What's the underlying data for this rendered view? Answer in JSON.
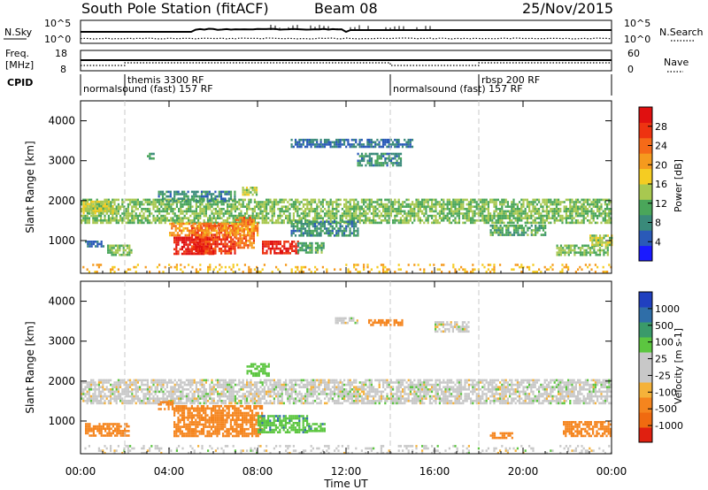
{
  "header": {
    "station": "South Pole Station (fitACF)",
    "beam": "Beam 08",
    "date": "25/Nov/2015"
  },
  "top_panels": {
    "nsky_label": "N.Sky",
    "nsky_ticks": [
      "10^5",
      "10^0"
    ],
    "nsearch_ticks": [
      "10^5",
      "10^0"
    ],
    "nsearch_label": "N.Search",
    "freq_label_1": "Freq.",
    "freq_label_2": "[MHz]",
    "freq_ticks": [
      "18",
      "8"
    ],
    "nave_ticks": [
      "60",
      "0"
    ],
    "nave_label": "Nave",
    "cpid_label": "CPID",
    "cpid_segments": [
      {
        "label": "normalsound (fast) 157 RF",
        "start_hour": 0
      },
      {
        "label": "themis 3300 RF",
        "start_hour": 2.0
      },
      {
        "label": "normalsound (fast) 157 RF",
        "start_hour": 14.0
      },
      {
        "label": "rbsp 200 RF",
        "start_hour": 18.0
      }
    ]
  },
  "colorbars": {
    "power": {
      "label": "Power [dB]",
      "ticks": [
        "4",
        "8",
        "12",
        "16",
        "20",
        "24",
        "28"
      ],
      "colors": [
        "#1a1aff",
        "#2a5ab8",
        "#3a8a7a",
        "#4aa65a",
        "#a8c850",
        "#f5cc22",
        "#f59a1e",
        "#f56a18",
        "#ee3311",
        "#e01010"
      ]
    },
    "velocity": {
      "label": "Velocity [m s-1]",
      "ticks": [
        "1000",
        "500",
        "100",
        "25",
        "-25",
        "-100",
        "-500",
        "-1000"
      ],
      "colors": [
        "#2040c0",
        "#2f6ea8",
        "#3a9a6a",
        "#5cc640",
        "#c8c8c8",
        "#c8c8c8",
        "#f5b23a",
        "#f5851e",
        "#f06a10",
        "#e02010"
      ]
    }
  },
  "chart_data": [
    {
      "type": "heatmap",
      "name": "Power",
      "ylabel": "Slant Range [km]",
      "xlabel": "Time UT",
      "ylim": [
        180,
        4500
      ],
      "yticks": [
        1000,
        2000,
        3000,
        4000
      ],
      "xlim": [
        0,
        24
      ],
      "xticks": [
        "00:00",
        "04:00",
        "08:00",
        "12:00",
        "16:00",
        "20:00",
        "00:00"
      ],
      "value_unit": "dB",
      "blobs": [
        {
          "t0": 0.0,
          "t1": 24.0,
          "r0": 1450,
          "r1": 2050,
          "level": 12
        },
        {
          "t0": 0.1,
          "t1": 1.5,
          "r0": 1700,
          "r1": 2000,
          "level": 14
        },
        {
          "t0": 1.2,
          "t1": 2.3,
          "r0": 640,
          "r1": 900,
          "level": 12
        },
        {
          "t0": 0.2,
          "t1": 1.0,
          "r0": 850,
          "r1": 1000,
          "level": 6
        },
        {
          "t0": 3.5,
          "t1": 7.0,
          "r0": 2000,
          "r1": 2250,
          "level": 8
        },
        {
          "t0": 7.3,
          "t1": 8.0,
          "r0": 2150,
          "r1": 2350,
          "level": 14
        },
        {
          "t0": 4.2,
          "t1": 6.0,
          "r0": 650,
          "r1": 1100,
          "level": 28
        },
        {
          "t0": 5.0,
          "t1": 7.0,
          "r0": 700,
          "r1": 1400,
          "level": 26
        },
        {
          "t0": 7.0,
          "t1": 7.8,
          "r0": 800,
          "r1": 1600,
          "level": 22
        },
        {
          "t0": 8.2,
          "t1": 9.8,
          "r0": 700,
          "r1": 1000,
          "level": 27
        },
        {
          "t0": 9.8,
          "t1": 11.0,
          "r0": 720,
          "r1": 960,
          "level": 10
        },
        {
          "t0": 4.0,
          "t1": 8.0,
          "r0": 1150,
          "r1": 1450,
          "level": 20
        },
        {
          "t0": 9.5,
          "t1": 12.5,
          "r0": 1100,
          "r1": 1500,
          "level": 8
        },
        {
          "t0": 9.5,
          "t1": 15.0,
          "r0": 3350,
          "r1": 3550,
          "level": 6
        },
        {
          "t0": 12.5,
          "t1": 14.5,
          "r0": 2900,
          "r1": 3200,
          "level": 8
        },
        {
          "t0": 3.0,
          "t1": 3.3,
          "r0": 3050,
          "r1": 3200,
          "level": 8
        },
        {
          "t0": 18.5,
          "t1": 21.0,
          "r0": 1150,
          "r1": 1400,
          "level": 10
        },
        {
          "t0": 21.5,
          "t1": 23.8,
          "r0": 650,
          "r1": 900,
          "level": 12
        },
        {
          "t0": 23.0,
          "t1": 24.0,
          "r0": 900,
          "r1": 1150,
          "level": 14
        },
        {
          "t0": 0.0,
          "t1": 24.0,
          "r0": 200,
          "r1": 420,
          "level": 18
        }
      ]
    },
    {
      "type": "heatmap",
      "name": "Velocity",
      "ylabel": "Slant Range [km]",
      "xlabel": "Time UT",
      "ylim": [
        180,
        4500
      ],
      "yticks": [
        1000,
        2000,
        3000,
        4000
      ],
      "xlim": [
        0,
        24
      ],
      "xticks": [
        "00:00",
        "04:00",
        "08:00",
        "12:00",
        "16:00",
        "20:00",
        "00:00"
      ],
      "value_unit": "m s-1",
      "blobs": [
        {
          "t0": 0.0,
          "t1": 24.0,
          "r0": 1450,
          "r1": 2050,
          "level": 0
        },
        {
          "t0": 0.2,
          "t1": 2.2,
          "r0": 650,
          "r1": 950,
          "level": -200
        },
        {
          "t0": 3.5,
          "t1": 4.2,
          "r0": 1300,
          "r1": 1500,
          "level": -300
        },
        {
          "t0": 4.2,
          "t1": 8.2,
          "r0": 650,
          "r1": 1400,
          "level": -300
        },
        {
          "t0": 8.0,
          "t1": 10.2,
          "r0": 700,
          "r1": 1150,
          "level": 80
        },
        {
          "t0": 10.2,
          "t1": 11.0,
          "r0": 720,
          "r1": 950,
          "level": 80
        },
        {
          "t0": 7.5,
          "t1": 8.5,
          "r0": 2150,
          "r1": 2450,
          "level": 60
        },
        {
          "t0": 11.5,
          "t1": 12.5,
          "r0": 3450,
          "r1": 3600,
          "level": 0
        },
        {
          "t0": 13.0,
          "t1": 14.5,
          "r0": 3400,
          "r1": 3550,
          "level": -300
        },
        {
          "t0": 16.0,
          "t1": 17.5,
          "r0": 3250,
          "r1": 3500,
          "level": 0
        },
        {
          "t0": 18.5,
          "t1": 19.5,
          "r0": 580,
          "r1": 720,
          "level": -300
        },
        {
          "t0": 21.8,
          "t1": 24.0,
          "r0": 600,
          "r1": 1000,
          "level": -350
        },
        {
          "t0": 0.0,
          "t1": 24.0,
          "r0": 200,
          "r1": 400,
          "level": 0
        }
      ]
    }
  ]
}
